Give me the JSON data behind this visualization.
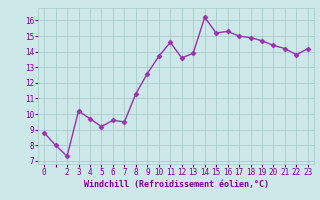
{
  "x": [
    0,
    1,
    2,
    3,
    4,
    5,
    6,
    7,
    8,
    9,
    10,
    11,
    12,
    13,
    14,
    15,
    16,
    17,
    18,
    19,
    20,
    21,
    22,
    23
  ],
  "y": [
    8.8,
    8.0,
    7.3,
    10.2,
    9.7,
    9.2,
    9.6,
    9.5,
    11.3,
    12.6,
    13.7,
    14.6,
    13.6,
    13.9,
    16.2,
    15.2,
    15.3,
    15.0,
    14.9,
    14.7,
    14.4,
    14.2,
    13.8,
    14.2
  ],
  "line_color": "#9B30B0",
  "marker": "D",
  "marker_size": 2.5,
  "linewidth": 1.0,
  "xlabel": "Windchill (Refroidissement éolien,°C)",
  "xlabel_color": "#7B00A0",
  "xtick_labels": [
    "0",
    "",
    "2",
    "3",
    "4",
    "5",
    "6",
    "7",
    "8",
    "9",
    "10",
    "11",
    "12",
    "13",
    "14",
    "15",
    "16",
    "17",
    "18",
    "19",
    "20",
    "21",
    "22",
    "23"
  ],
  "yticks": [
    7,
    8,
    9,
    10,
    11,
    12,
    13,
    14,
    15,
    16
  ],
  "ylim": [
    6.8,
    16.8
  ],
  "xlim": [
    -0.5,
    23.5
  ],
  "background_color": "#cce8e8",
  "grid_color": "#aacccc",
  "tick_color": "#7B00A0",
  "tick_fontsize": 5.5,
  "xlabel_fontsize": 6.0
}
